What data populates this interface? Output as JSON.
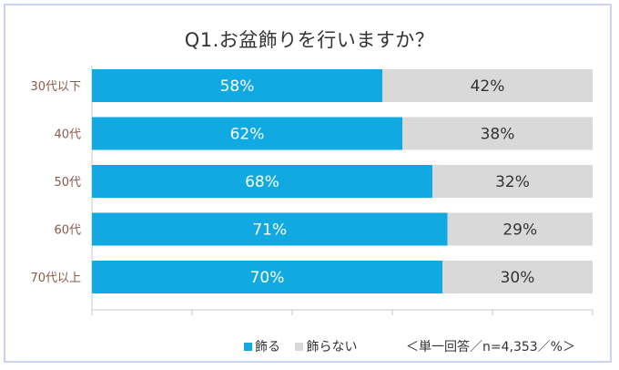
{
  "colors": {
    "primary": "#10a9e2",
    "secondary": "#d9d9d9",
    "category_text": "#8a5a4a"
  },
  "note": "＜単一回答／n=4,353／%＞",
  "chart_data": {
    "type": "bar",
    "orientation": "horizontal",
    "stacked": true,
    "title": "Q1.お盆飾りを行いますか？",
    "categories": [
      "30代以下",
      "40代",
      "50代",
      "60代",
      "70代以上"
    ],
    "series": [
      {
        "name": "飾る",
        "values": [
          58,
          62,
          68,
          71,
          70
        ]
      },
      {
        "name": "飾らない",
        "values": [
          42,
          38,
          32,
          29,
          30
        ]
      }
    ],
    "xlim": [
      0,
      100
    ],
    "legend": "bottom",
    "grid": true
  }
}
